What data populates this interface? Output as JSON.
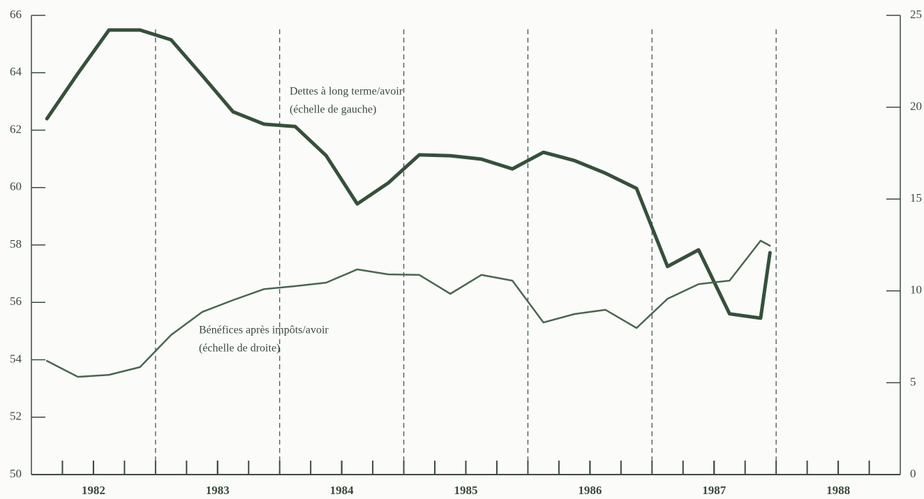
{
  "chart_data": {
    "type": "line",
    "x": [
      1982.125,
      1982.375,
      1982.625,
      1982.875,
      1983.125,
      1983.375,
      1983.625,
      1983.875,
      1984.125,
      1984.375,
      1984.625,
      1984.875,
      1985.125,
      1985.375,
      1985.625,
      1985.875,
      1986.125,
      1986.375,
      1986.625,
      1986.875,
      1987.125,
      1987.375,
      1987.625,
      1987.875,
      1987.95
    ],
    "series": [
      {
        "name": "Dettes à long terme/avoir",
        "color": "#36503a",
        "width": 5,
        "values": [
          62.4,
          63.98,
          65.49,
          65.49,
          65.15,
          63.91,
          62.64,
          62.21,
          62.13,
          61.11,
          59.43,
          60.16,
          61.14,
          61.11,
          60.99,
          60.65,
          61.23,
          60.94,
          60.5,
          59.97,
          57.25,
          57.83,
          55.6,
          55.45,
          57.73
        ]
      },
      {
        "name": "Bénéfices après impôts/avoir",
        "color": "#4a6650",
        "width": 2.5,
        "axis": "y2",
        "values": [
          6.19,
          5.32,
          5.43,
          5.85,
          7.6,
          8.85,
          9.5,
          10.1,
          10.26,
          10.45,
          11.17,
          10.9,
          10.87,
          9.84,
          10.87,
          10.56,
          8.28,
          8.74,
          8.97,
          7.98,
          9.57,
          10.37,
          10.56,
          12.73,
          12.46
        ]
      }
    ],
    "annotations": [
      {
        "series": 0,
        "lines": [
          "Dettes à long terme/avoir",
          "(échelle de gauche)"
        ]
      },
      {
        "series": 1,
        "lines": [
          "Bénéfices après impôts/avoir",
          "(échelle de droite)"
        ]
      }
    ],
    "xlim": [
      1982,
      1989
    ],
    "xticks": [
      {
        "value": 1982.5,
        "label": "1982"
      },
      {
        "value": 1983.5,
        "label": "1983"
      },
      {
        "value": 1984.5,
        "label": "1984"
      },
      {
        "value": 1985.5,
        "label": "1985"
      },
      {
        "value": 1986.5,
        "label": "1986"
      },
      {
        "value": 1987.5,
        "label": "1987"
      },
      {
        "value": 1988.5,
        "label": "1988"
      }
    ],
    "xminorticks": [
      1982.25,
      1982.5,
      1982.75,
      1983,
      1983.25,
      1983.5,
      1983.75,
      1984,
      1984.25,
      1984.5,
      1984.75,
      1985,
      1985.25,
      1985.5,
      1985.75,
      1986,
      1986.25,
      1986.5,
      1986.75,
      1987,
      1987.25,
      1987.5,
      1987.75,
      1988,
      1988.25,
      1988.5,
      1988.75
    ],
    "reference_lines": [
      1983,
      1984,
      1985,
      1986,
      1987,
      1988
    ],
    "ylim": [
      50,
      66
    ],
    "yticks": [
      50,
      52,
      54,
      56,
      58,
      60,
      62,
      64,
      66
    ],
    "y2lim": [
      0,
      25
    ],
    "y2ticks": [
      0,
      5,
      10,
      15,
      20,
      25
    ],
    "axis_color": "#3c4a3e",
    "grid": false
  }
}
